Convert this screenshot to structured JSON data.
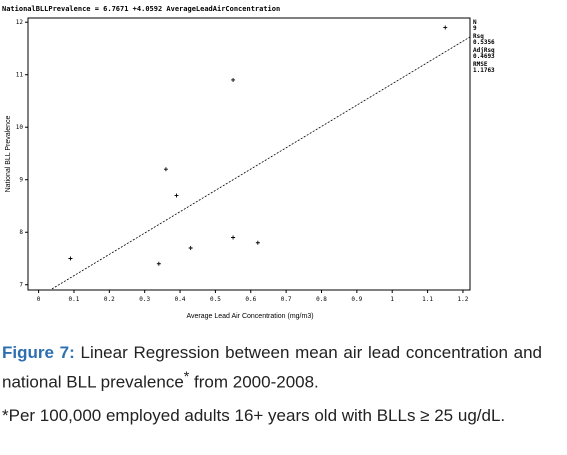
{
  "chart_data": {
    "type": "scatter",
    "title_parts": [
      "NationalBLLPrevalence =",
      "+",
      "AverageLeadAirConcentration"
    ],
    "fit": {
      "intercept": 6.7671,
      "slope": 4.0592
    },
    "x_label": "Average Lead Air Concentration (mg/m3)",
    "y_label": "National BLL Prevalence",
    "x": [
      0.09,
      0.34,
      0.36,
      0.39,
      0.43,
      0.55,
      0.55,
      0.62,
      1.15
    ],
    "y": [
      7.5,
      7.4,
      9.2,
      8.7,
      7.7,
      10.9,
      7.9,
      7.8,
      11.9
    ],
    "xlim": [
      -0.03,
      1.22
    ],
    "ylim": [
      6.9,
      12.08
    ],
    "xticks": [
      0,
      0.1,
      0.2,
      0.3,
      0.4,
      0.5,
      0.6,
      0.7,
      0.8,
      0.9,
      1,
      1.1,
      1.2
    ],
    "yticks": [
      7,
      8,
      9,
      10,
      11,
      12
    ],
    "stats": [
      {
        "label": "N",
        "value": 9
      },
      {
        "label": "Rsq",
        "value": 0.5356
      },
      {
        "label": "AdjRsq",
        "value": 0.4693
      },
      {
        "label": "RMSE",
        "value": 1.1763
      }
    ]
  },
  "caption": {
    "figure": "Figure 7:",
    "text": "Linear Regression between mean air lead concentration and national BLL prevalence",
    "mark": "*",
    "tail": "from 2000-2008."
  },
  "footnote": "*Per 100,000 employed adults 16+ years old with BLLs ≥ 25 ug/dL."
}
